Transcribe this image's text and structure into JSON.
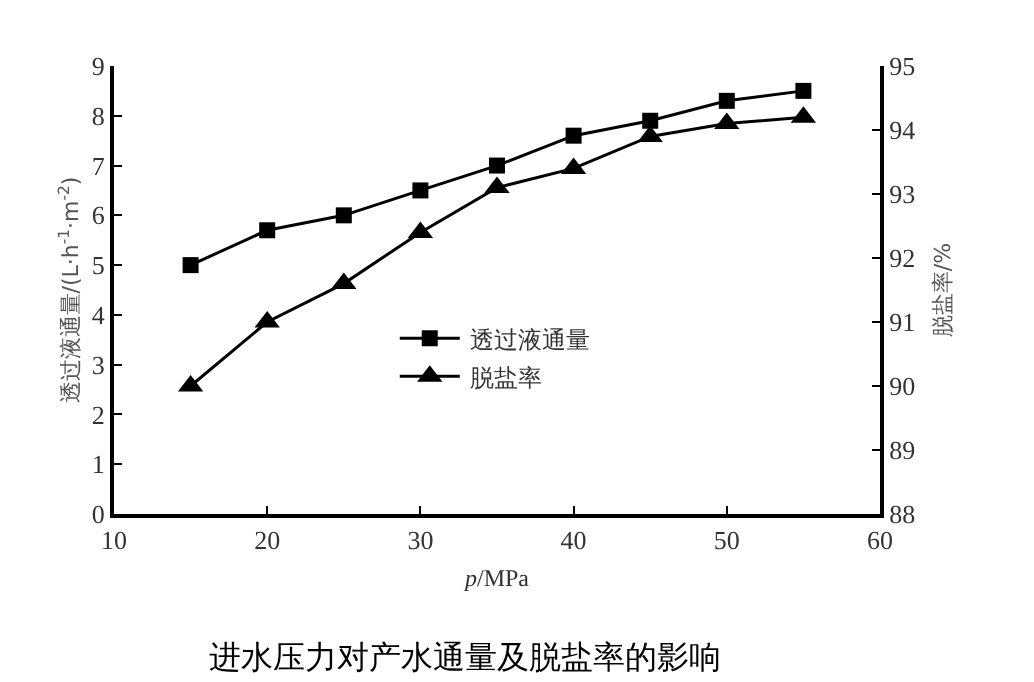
{
  "chart_data": {
    "type": "line",
    "title": "进水压力对产水通量及脱盐率的影响",
    "xlabel": "p/MPa",
    "ylabel": "透过液通量/(L·h$^{-1}$·m$^{-2}$)",
    "y2label": "脱盐率/%",
    "x": [
      15,
      20,
      25,
      30,
      35,
      40,
      45,
      50,
      55
    ],
    "series": [
      {
        "name": "透过液通量",
        "color": "#000000",
        "marker": "square",
        "values": [
          5.0,
          5.7,
          6.0,
          6.5,
          7.0,
          7.6,
          7.9,
          8.3,
          8.5
        ]
      },
      {
        "name": "脱盐率",
        "color": "#000000",
        "marker": "triangle",
        "axis": "y2",
        "values": [
          90.0,
          91.0,
          91.6,
          92.4,
          93.1,
          93.4,
          93.9,
          94.1,
          94.2
        ]
      }
    ],
    "xlim": [
      10,
      60
    ],
    "xticks": [
      10,
      20,
      30,
      40,
      50,
      60
    ],
    "ylim": [
      0,
      9
    ],
    "yticks": [
      0,
      1,
      2,
      3,
      4,
      5,
      6,
      7,
      8,
      9
    ],
    "y2lim": [
      88,
      95
    ],
    "y2ticks": [
      88,
      89,
      90,
      91,
      92,
      93,
      94,
      95
    ],
    "legend": "center",
    "line_style": "solid"
  }
}
